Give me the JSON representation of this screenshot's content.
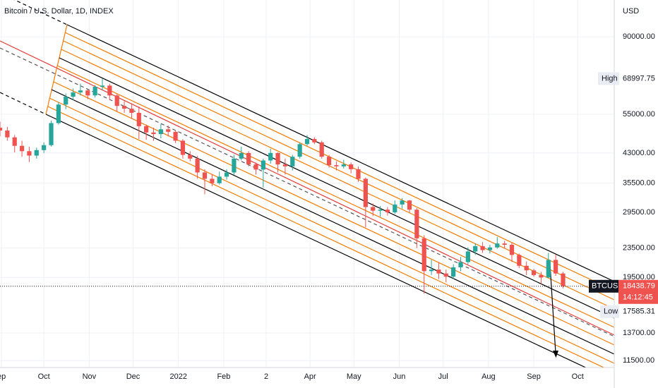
{
  "chart_data": {
    "type": "candlestick",
    "title": "Bitcoin / U.S. Dollar, 1D, INDEX",
    "currency": "USD",
    "symbol": "BTCUSD",
    "countdown": "14:12:45",
    "high_label": "High",
    "low_label": "Low",
    "log_scale": true,
    "grid": true,
    "up_color": "#26a69a",
    "down_color": "#ef5350",
    "xlim": [
      -30,
      390
    ],
    "ylim": [
      11000,
      113700
    ],
    "xticks": [
      {
        "value": -29,
        "label": "ep"
      },
      {
        "value": 0,
        "label": "Oct"
      },
      {
        "value": 31,
        "label": "Nov"
      },
      {
        "value": 61,
        "label": "Dec"
      },
      {
        "value": 92,
        "label": "2022"
      },
      {
        "value": 123,
        "label": "Feb"
      },
      {
        "value": 152,
        "label": "2"
      },
      {
        "value": 182,
        "label": "Apr"
      },
      {
        "value": 212,
        "label": "May"
      },
      {
        "value": 243,
        "label": "Jun"
      },
      {
        "value": 273,
        "label": "Jul"
      },
      {
        "value": 304,
        "label": "Aug"
      },
      {
        "value": 335,
        "label": "Sep"
      },
      {
        "value": 365,
        "label": "Oct"
      }
    ],
    "yticks": [
      {
        "value": 90000,
        "label": "90000.00"
      },
      {
        "value": 55000,
        "label": "55000.00"
      },
      {
        "value": 43000,
        "label": "43000.00"
      },
      {
        "value": 35500,
        "label": "35500.00"
      },
      {
        "value": 29500,
        "label": "29500.00"
      },
      {
        "value": 23500,
        "label": "23500.00"
      },
      {
        "value": 19500,
        "label": "19500.00"
      },
      {
        "value": 13700,
        "label": "13700.00"
      },
      {
        "value": 11500,
        "label": "11500.00"
      }
    ],
    "x": [
      -30,
      -25,
      -20,
      -15,
      -10,
      -5,
      0,
      5,
      10,
      15,
      20,
      25,
      30,
      35,
      40,
      45,
      50,
      55,
      60,
      65,
      70,
      75,
      80,
      85,
      90,
      95,
      100,
      105,
      110,
      115,
      120,
      125,
      130,
      135,
      140,
      145,
      150,
      155,
      160,
      165,
      170,
      175,
      180,
      185,
      190,
      195,
      200,
      205,
      210,
      215,
      220,
      225,
      230,
      235,
      240,
      245,
      250,
      255,
      260,
      265,
      270,
      275,
      280,
      285,
      290,
      295,
      300,
      305,
      310,
      315,
      320,
      325,
      330,
      335,
      340,
      345,
      350,
      355
    ],
    "open": [
      50500,
      49600,
      47500,
      45000,
      43500,
      42300,
      43800,
      45200,
      52000,
      58500,
      61500,
      63200,
      64000,
      62000,
      65500,
      66000,
      62000,
      58000,
      57000,
      55500,
      51000,
      49000,
      48500,
      50000,
      49200,
      46500,
      42500,
      41500,
      38000,
      36500,
      35500,
      37000,
      38000,
      41500,
      43000,
      40000,
      38700,
      41000,
      43000,
      40000,
      39500,
      42000,
      45500,
      47000,
      46000,
      42000,
      39800,
      39500,
      40000,
      38800,
      36500,
      30500,
      29800,
      30000,
      29500,
      31000,
      31800,
      30000,
      25000,
      20300,
      20500,
      20000,
      19600,
      20800,
      21500,
      23000,
      23800,
      23200,
      23600,
      24200,
      24000,
      22500,
      21000,
      20400,
      19800,
      19500,
      21800,
      20000
    ],
    "high": [
      52500,
      50800,
      48200,
      46500,
      44800,
      44500,
      46000,
      52800,
      59500,
      62800,
      64800,
      66800,
      64500,
      66200,
      68997.75,
      66800,
      62500,
      59800,
      59000,
      57800,
      51500,
      50500,
      51800,
      51200,
      49500,
      47000,
      43500,
      42200,
      38800,
      37500,
      38200,
      38800,
      42500,
      44800,
      43500,
      40500,
      41500,
      44200,
      43200,
      41500,
      42500,
      46000,
      48200,
      47500,
      46500,
      42500,
      40800,
      41200,
      40500,
      39500,
      36800,
      31200,
      30700,
      30500,
      31800,
      32300,
      31900,
      30300,
      25500,
      21800,
      21500,
      20500,
      21200,
      22200,
      23600,
      24200,
      24400,
      24000,
      25200,
      24600,
      24300,
      22700,
      21600,
      20600,
      20200,
      22800,
      22500,
      20200
    ],
    "low": [
      47800,
      46500,
      43200,
      42000,
      40600,
      41500,
      43000,
      44800,
      51500,
      56800,
      60200,
      62000,
      60500,
      61200,
      64200,
      60200,
      56000,
      55500,
      53500,
      47000,
      46800,
      46500,
      47200,
      47800,
      45800,
      41500,
      40800,
      36500,
      33100,
      34800,
      35200,
      36300,
      37500,
      41000,
      39500,
      37500,
      34500,
      40200,
      38000,
      37500,
      38500,
      41500,
      45000,
      45500,
      41500,
      39200,
      38500,
      39000,
      37800,
      35800,
      26800,
      28800,
      28700,
      28900,
      29200,
      30200,
      29500,
      23500,
      17585.31,
      19800,
      19300,
      18900,
      19300,
      20300,
      21200,
      22500,
      22800,
      22700,
      23400,
      23500,
      21500,
      20700,
      19800,
      19600,
      18700,
      19400,
      19700,
      18200
    ],
    "close": [
      49600,
      47500,
      45000,
      43500,
      42300,
      43800,
      45200,
      52000,
      58500,
      61500,
      63200,
      64000,
      62000,
      65500,
      66000,
      62000,
      58000,
      57000,
      55500,
      51000,
      49000,
      48500,
      50000,
      49200,
      46500,
      42500,
      41500,
      38000,
      36500,
      35500,
      37000,
      38000,
      41500,
      43000,
      40000,
      38700,
      41000,
      43000,
      40000,
      39500,
      42000,
      45500,
      47000,
      46000,
      42000,
      39800,
      39500,
      40000,
      38800,
      36500,
      30500,
      29800,
      30000,
      29500,
      31000,
      31800,
      30000,
      25000,
      20300,
      20500,
      20000,
      19600,
      20800,
      21500,
      23000,
      23800,
      23200,
      23600,
      24200,
      24000,
      22500,
      21000,
      20400,
      19800,
      19500,
      21800,
      20000,
      18438.79
    ]
  }
}
